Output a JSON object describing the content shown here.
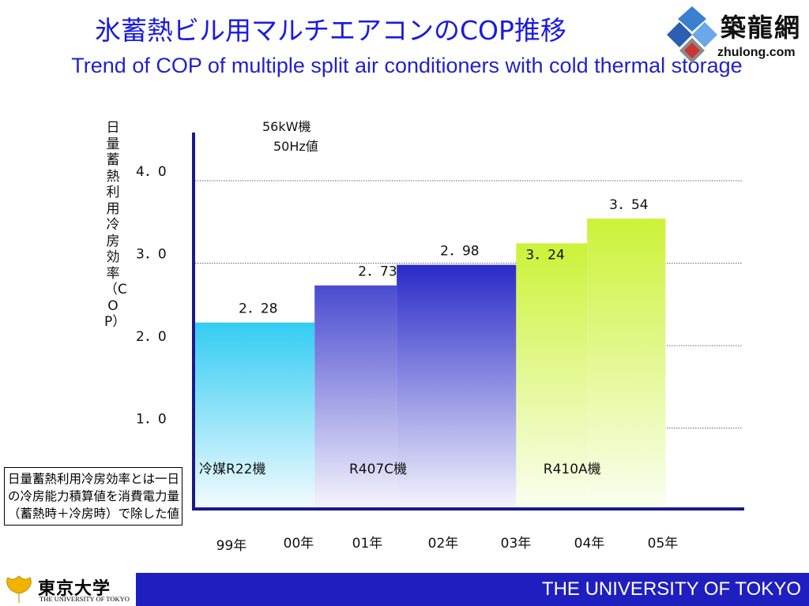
{
  "title_jp": "氷蓄熱ビル用マルチエアコンのCOP推移",
  "title_en": "Trend of COP of multiple split air conditioners with cold thermal storage",
  "logo": {
    "cn": "築龍網",
    "en": "zhulong.com"
  },
  "chart_data": {
    "type": "bar",
    "ylabel": "日量蓄熱利用冷房効率（COP）",
    "subtitle_lines": [
      "56kW機",
      "50Hz値"
    ],
    "x_ticks": [
      "99年",
      "00年",
      "01年",
      "02年",
      "03年",
      "04年",
      "05年"
    ],
    "y_ticks": [
      "1．0",
      "2．0",
      "3．0",
      "4．0"
    ],
    "ylim": [
      0.9,
      4.5
    ],
    "grid": true,
    "bars": [
      {
        "label": "2．28",
        "value": 2.28,
        "start": 0,
        "end": 1.6,
        "color_top": "#33ccf2",
        "color_bottom": "#f2fbff"
      },
      {
        "label": "2．73",
        "value": 2.73,
        "start": 1.6,
        "end": 2.7,
        "color_top": "#4a4ad0",
        "color_bottom": "#f4f4fd"
      },
      {
        "label": "2．98",
        "value": 2.98,
        "start": 2.7,
        "end": 4.3,
        "color_top": "#2a2ac8",
        "color_bottom": "#f4f4fd"
      },
      {
        "label": "3．24",
        "value": 3.24,
        "start": 4.3,
        "end": 5.25,
        "color_top": "#ccf238",
        "color_bottom": "#fafef0"
      },
      {
        "label": "3．54",
        "value": 3.54,
        "start": 5.25,
        "end": 6.3,
        "color_top": "#ccf238",
        "color_bottom": "#fafef0"
      }
    ],
    "refrigerant_labels": [
      {
        "text": "冷媒R22機",
        "at": 0.5
      },
      {
        "text": "R407C機",
        "at": 2.45
      },
      {
        "text": "R410A機",
        "at": 5.05
      }
    ]
  },
  "note": "日量蓄熱利用冷房効率とは一日の冷房能力積算値を消費電力量（蓄熱時＋冷房時）で除した値",
  "footer": {
    "logo_jp": "東京大学",
    "logo_en": "THE UNIVERSITY OF TOKYO",
    "university": "THE UNIVERSITY OF TOKYO"
  }
}
